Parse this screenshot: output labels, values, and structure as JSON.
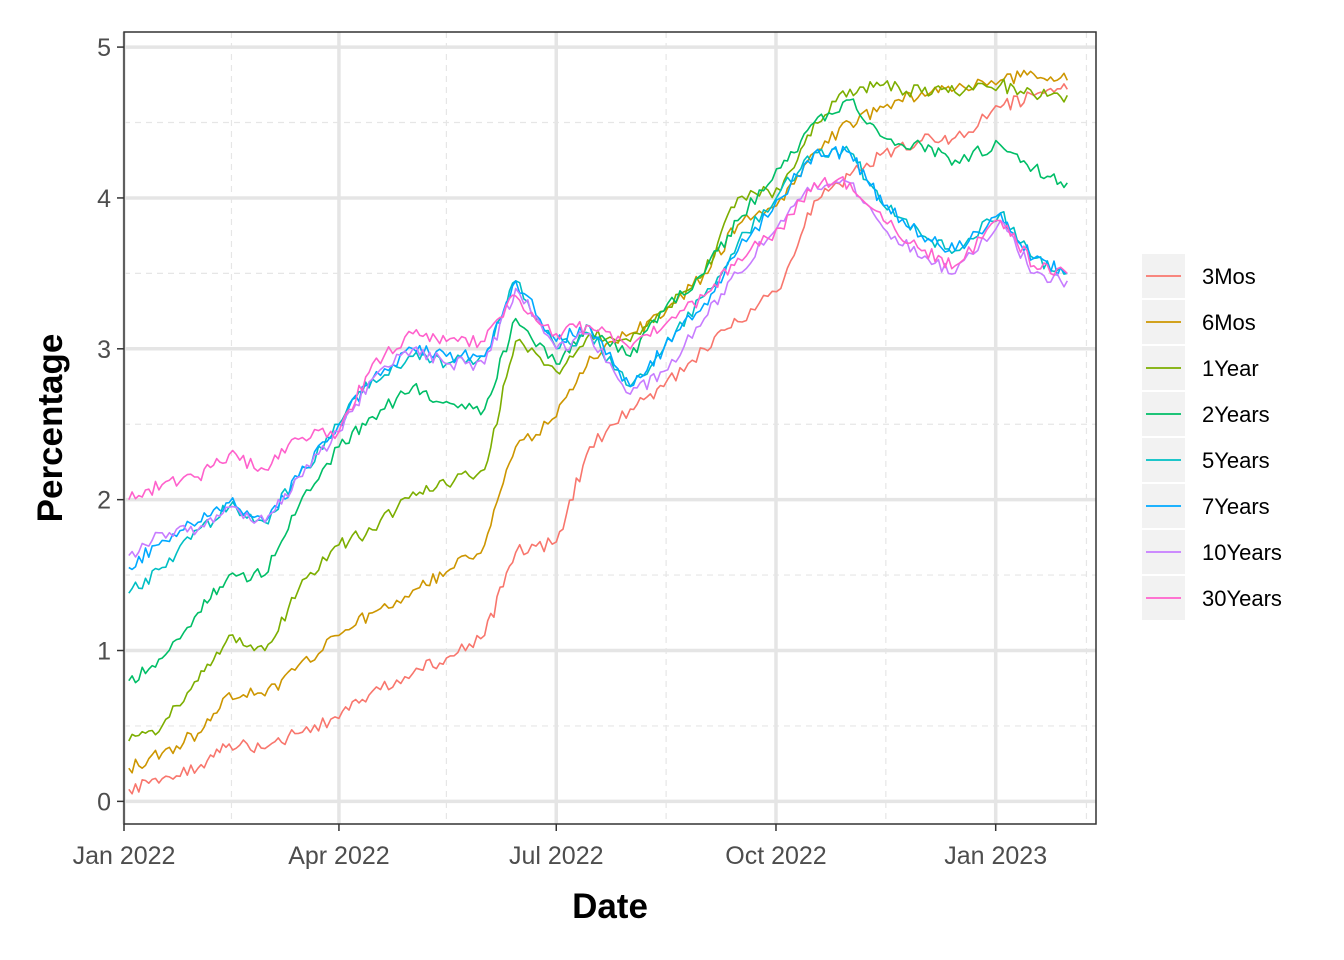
{
  "chart_data": {
    "type": "line",
    "xlabel": "Date",
    "ylabel": "Percentage",
    "xlim": [
      "2022-01-01",
      "2023-02-12"
    ],
    "ylim": [
      -0.15,
      5.1
    ],
    "x_ticks": [
      {
        "date": "2022-01-01",
        "label": "Jan 2022"
      },
      {
        "date": "2022-04-01",
        "label": "Apr 2022"
      },
      {
        "date": "2022-07-01",
        "label": "Jul 2022"
      },
      {
        "date": "2022-10-01",
        "label": "Oct 2022"
      },
      {
        "date": "2023-01-01",
        "label": "Jan 2023"
      }
    ],
    "x_minor_ticks": [
      "2022-02-15",
      "2022-05-16",
      "2022-08-16",
      "2022-11-16",
      "2023-02-08"
    ],
    "y_ticks": [
      0,
      1,
      2,
      3,
      4,
      5
    ],
    "y_minor_ticks": [
      0.5,
      1.5,
      2.5,
      3.5,
      4.5
    ],
    "grid": true,
    "legend_position": "right",
    "x": [
      "2022-01-03",
      "2022-01-17",
      "2022-02-01",
      "2022-02-14",
      "2022-03-01",
      "2022-03-15",
      "2022-04-01",
      "2022-04-15",
      "2022-05-02",
      "2022-05-16",
      "2022-06-01",
      "2022-06-14",
      "2022-07-01",
      "2022-07-15",
      "2022-08-01",
      "2022-08-15",
      "2022-09-01",
      "2022-09-15",
      "2022-10-03",
      "2022-10-17",
      "2022-11-01",
      "2022-11-15",
      "2022-12-01",
      "2022-12-15",
      "2023-01-03",
      "2023-01-17",
      "2023-01-31"
    ],
    "series": [
      {
        "name": "3Mos",
        "color": "#F8766D",
        "values": [
          0.08,
          0.15,
          0.22,
          0.38,
          0.35,
          0.45,
          0.55,
          0.73,
          0.85,
          0.95,
          1.1,
          1.65,
          1.72,
          2.35,
          2.6,
          2.75,
          3.0,
          3.18,
          3.4,
          3.98,
          4.15,
          4.3,
          4.38,
          4.4,
          4.6,
          4.68,
          4.72
        ]
      },
      {
        "name": "6Mos",
        "color": "#CD9600",
        "values": [
          0.22,
          0.32,
          0.45,
          0.72,
          0.7,
          0.9,
          1.1,
          1.25,
          1.4,
          1.52,
          1.7,
          2.35,
          2.55,
          2.95,
          3.1,
          3.22,
          3.5,
          3.82,
          4.0,
          4.3,
          4.5,
          4.6,
          4.7,
          4.72,
          4.78,
          4.82,
          4.78
        ]
      },
      {
        "name": "1Year",
        "color": "#7CAE00",
        "values": [
          0.4,
          0.5,
          0.8,
          1.1,
          1.0,
          1.4,
          1.7,
          1.8,
          2.05,
          2.1,
          2.2,
          3.05,
          2.85,
          3.1,
          3.05,
          3.25,
          3.5,
          4.0,
          4.05,
          4.5,
          4.72,
          4.75,
          4.7,
          4.7,
          4.75,
          4.68,
          4.68
        ]
      },
      {
        "name": "2Years",
        "color": "#00BE67",
        "values": [
          0.8,
          0.95,
          1.25,
          1.5,
          1.5,
          1.95,
          2.35,
          2.55,
          2.75,
          2.65,
          2.6,
          3.2,
          2.9,
          3.15,
          2.95,
          3.25,
          3.5,
          3.85,
          4.2,
          4.5,
          4.65,
          4.4,
          4.35,
          4.25,
          4.35,
          4.2,
          4.1
        ]
      },
      {
        "name": "5Years",
        "color": "#00BFC4",
        "values": [
          1.38,
          1.55,
          1.8,
          1.95,
          1.85,
          2.15,
          2.5,
          2.8,
          2.95,
          2.9,
          2.95,
          3.45,
          3.0,
          3.1,
          2.75,
          3.0,
          3.35,
          3.7,
          4.05,
          4.3,
          4.3,
          3.95,
          3.75,
          3.65,
          3.9,
          3.6,
          3.5
        ]
      },
      {
        "name": "7Years",
        "color": "#00A9FF",
        "values": [
          1.55,
          1.73,
          1.85,
          1.98,
          1.85,
          2.15,
          2.5,
          2.8,
          3.0,
          2.95,
          2.95,
          3.45,
          3.05,
          3.15,
          2.75,
          3.0,
          3.3,
          3.65,
          4.0,
          4.3,
          4.3,
          3.95,
          3.75,
          3.65,
          3.9,
          3.6,
          3.5
        ]
      },
      {
        "name": "10Years",
        "color": "#C77CFF",
        "values": [
          1.63,
          1.78,
          1.8,
          1.95,
          1.85,
          2.15,
          2.45,
          2.8,
          3.0,
          2.9,
          2.9,
          3.4,
          3.0,
          3.1,
          2.7,
          2.85,
          3.2,
          3.5,
          3.85,
          4.1,
          4.1,
          3.8,
          3.6,
          3.5,
          3.85,
          3.5,
          3.45
        ]
      },
      {
        "name": "30Years",
        "color": "#FF61CC",
        "values": [
          2.0,
          2.1,
          2.15,
          2.3,
          2.2,
          2.4,
          2.45,
          2.9,
          3.1,
          3.05,
          3.05,
          3.35,
          3.1,
          3.15,
          3.0,
          3.15,
          3.35,
          3.6,
          3.8,
          4.1,
          4.1,
          3.85,
          3.65,
          3.55,
          3.85,
          3.55,
          3.5
        ]
      }
    ]
  }
}
